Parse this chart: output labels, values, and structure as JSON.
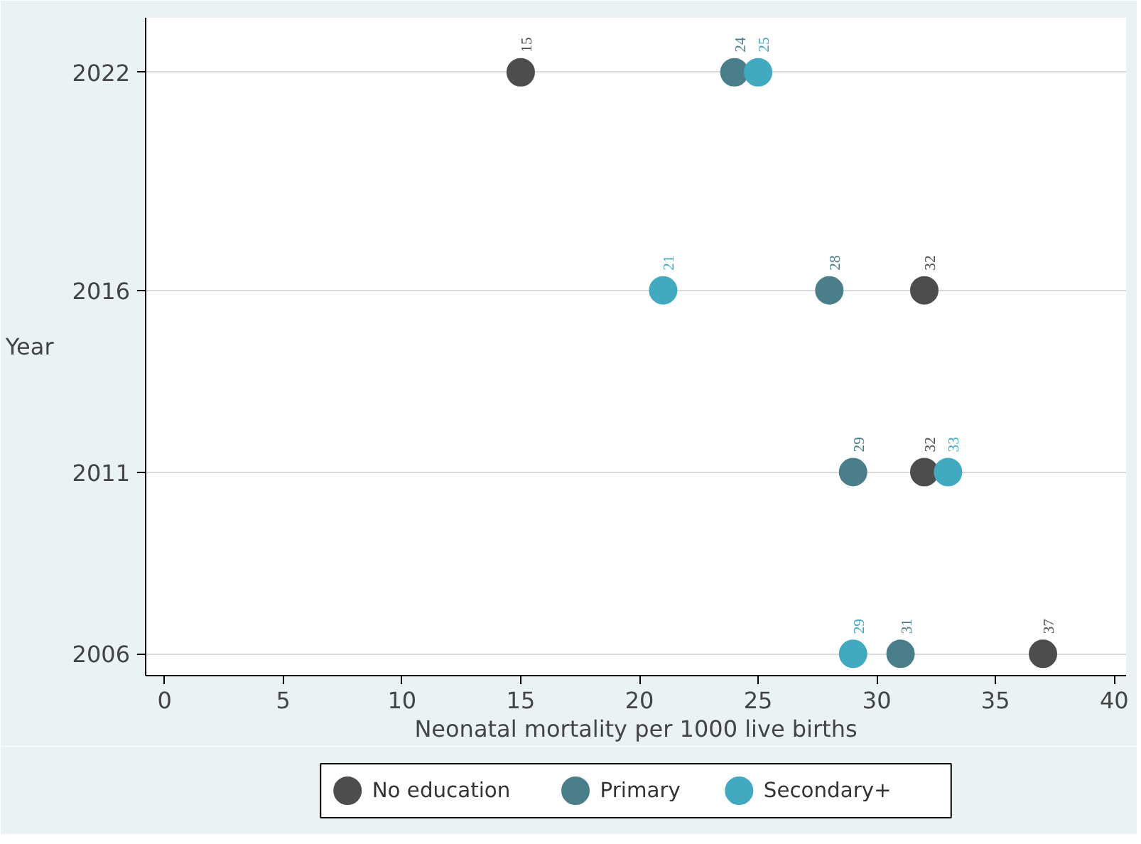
{
  "chart_data": {
    "type": "scatter",
    "xlabel": "Neonatal mortality per 1000 live births",
    "ylabel": "Year",
    "x": [
      2022,
      2016,
      2011,
      2006
    ],
    "orientation": "horizontal",
    "series": [
      {
        "name": "No education",
        "color": "#4d4d4d",
        "values": [
          15,
          32,
          32,
          37
        ]
      },
      {
        "name": "Primary",
        "color": "#4a7e8a",
        "values": [
          24,
          28,
          29,
          31
        ]
      },
      {
        "name": "Secondary+",
        "color": "#41a9c0",
        "values": [
          25,
          21,
          33,
          29
        ]
      }
    ],
    "xlim": [
      -0.8,
      40.5
    ],
    "xticks": [
      0,
      5,
      10,
      15,
      20,
      25,
      30,
      35,
      40
    ],
    "ylim": [
      2005.4,
      2023.5
    ],
    "yticks": [
      2006,
      2011,
      2016,
      2022
    ],
    "grid": "y",
    "legend": "bottom",
    "marker": "circle",
    "data_labels": true
  }
}
